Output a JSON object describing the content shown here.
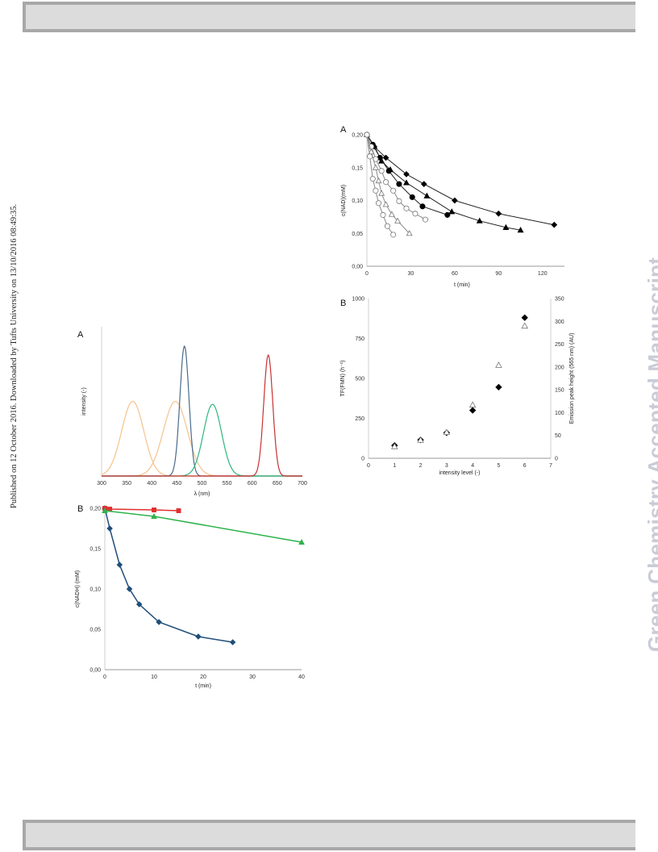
{
  "side_note": "Published on 12 October 2016. Downloaded by Tufts University on 13/10/2016 08:49:35.",
  "watermark": "Green Chemistry Accepted Manuscript",
  "chart_data": [
    {
      "id": "spectra",
      "panel": "A",
      "type": "line",
      "xlabel": "λ (nm)",
      "ylabel": "intensity (-)",
      "xlim": [
        300,
        700
      ],
      "ylim": [
        0,
        1
      ],
      "xticks": [
        "300",
        "350",
        "400",
        "450",
        "500",
        "550",
        "600",
        "650",
        "700"
      ],
      "colors": [
        "#f5c28c",
        "#f5c28c",
        "#4a6a8a",
        "#2eb67d",
        "#c83232"
      ],
      "series": [
        {
          "peak": 362,
          "width": 22,
          "height": 0.5
        },
        {
          "peak": 447,
          "width": 24,
          "height": 0.5
        },
        {
          "peak": 465,
          "width": 9,
          "height": 0.87
        },
        {
          "peak": 521,
          "width": 18,
          "height": 0.48
        },
        {
          "peak": 632,
          "width": 9,
          "height": 0.81
        }
      ]
    },
    {
      "id": "nadh",
      "panel": "B",
      "type": "line",
      "xlabel": "t (min)",
      "ylabel": "c(NADH) (mM)",
      "xlim": [
        0,
        40
      ],
      "ylim": [
        0,
        0.2
      ],
      "xticks": [
        "0",
        "10",
        "20",
        "30",
        "40"
      ],
      "yticks": [
        "0,00",
        "0,05",
        "0,10",
        "0,15",
        "0,20"
      ],
      "series": [
        {
          "color": "#1f4e79",
          "marker": "diamond",
          "x": [
            0,
            1,
            3,
            5,
            7,
            11,
            19,
            26
          ],
          "y": [
            0.2,
            0.175,
            0.13,
            0.1,
            0.081,
            0.059,
            0.041,
            0.034
          ]
        },
        {
          "color": "#e03030",
          "marker": "square",
          "x": [
            0,
            1,
            10,
            15
          ],
          "y": [
            0.2,
            0.199,
            0.198,
            0.197
          ]
        },
        {
          "color": "#2eb34a",
          "marker": "triangle",
          "x": [
            0,
            10,
            40
          ],
          "y": [
            0.197,
            0.19,
            0.158
          ]
        }
      ]
    },
    {
      "id": "kinetics",
      "panel": "A",
      "type": "line",
      "xlabel": "t (min)",
      "ylabel": "c(NAD)(mM)",
      "xlim": [
        0,
        135
      ],
      "ylim": [
        0,
        0.2
      ],
      "xticks": [
        "0",
        "30",
        "60",
        "90",
        "120"
      ],
      "yticks": [
        "0,00",
        "0,05",
        "0,10",
        "0,15",
        "0,20"
      ],
      "series": [
        {
          "marker": "diamond",
          "fill": "#000",
          "x": [
            0,
            5,
            13,
            27,
            39,
            60,
            90,
            128
          ],
          "y": [
            0.2,
            0.182,
            0.165,
            0.14,
            0.125,
            0.1,
            0.08,
            0.063
          ]
        },
        {
          "marker": "triangle",
          "fill": "#000",
          "x": [
            0,
            5,
            10,
            16,
            27,
            41,
            58,
            77,
            95,
            105
          ],
          "y": [
            0.2,
            0.183,
            0.16,
            0.147,
            0.127,
            0.107,
            0.083,
            0.069,
            0.059,
            0.055
          ]
        },
        {
          "marker": "circle",
          "fill": "#000",
          "x": [
            0,
            4,
            9,
            15,
            22,
            31,
            38,
            55
          ],
          "y": [
            0.2,
            0.185,
            0.165,
            0.145,
            0.125,
            0.105,
            0.091,
            0.078
          ]
        },
        {
          "marker": "circle",
          "fill": "#fff",
          "x": [
            0,
            3,
            6,
            10,
            13,
            18,
            22,
            27,
            33,
            40
          ],
          "y": [
            0.2,
            0.182,
            0.163,
            0.145,
            0.128,
            0.115,
            0.099,
            0.088,
            0.08,
            0.071
          ]
        },
        {
          "marker": "triangle",
          "fill": "#fff",
          "x": [
            0,
            3,
            6,
            8,
            10,
            13,
            17,
            21,
            29
          ],
          "y": [
            0.2,
            0.174,
            0.15,
            0.13,
            0.111,
            0.094,
            0.079,
            0.069,
            0.05
          ]
        },
        {
          "marker": "circle",
          "fill": "#fff",
          "x": [
            0,
            2,
            4,
            6,
            8,
            11,
            14,
            18
          ],
          "y": [
            0.2,
            0.167,
            0.133,
            0.115,
            0.096,
            0.078,
            0.061,
            0.048
          ]
        }
      ]
    },
    {
      "id": "tf",
      "panel": "B",
      "type": "scatter",
      "xlabel": "intensity level (-)",
      "ylabel": "TF(FMN) (h⁻¹)",
      "y2label": "Emission peak height (565 nm) (AU)",
      "xlim": [
        0,
        7
      ],
      "ylim": [
        0,
        1000
      ],
      "y2lim": [
        0,
        350
      ],
      "xticks": [
        "0",
        "1",
        "2",
        "3",
        "4",
        "5",
        "6",
        "7"
      ],
      "yticks": [
        "0",
        "250",
        "500",
        "750",
        "1000"
      ],
      "y2ticks": [
        "0",
        "50",
        "100",
        "150",
        "200",
        "250",
        "300",
        "350"
      ],
      "series": [
        {
          "marker": "diamond",
          "fill": "#000",
          "x": [
            1,
            2,
            3,
            4,
            5,
            6
          ],
          "y": [
            80,
            115,
            160,
            300,
            445,
            880
          ]
        },
        {
          "marker": "triangle",
          "fill": "#fff",
          "axis": "y2",
          "x": [
            1,
            2,
            3,
            4,
            5,
            6
          ],
          "y": [
            26,
            40,
            57,
            117,
            204,
            290
          ]
        }
      ]
    }
  ]
}
